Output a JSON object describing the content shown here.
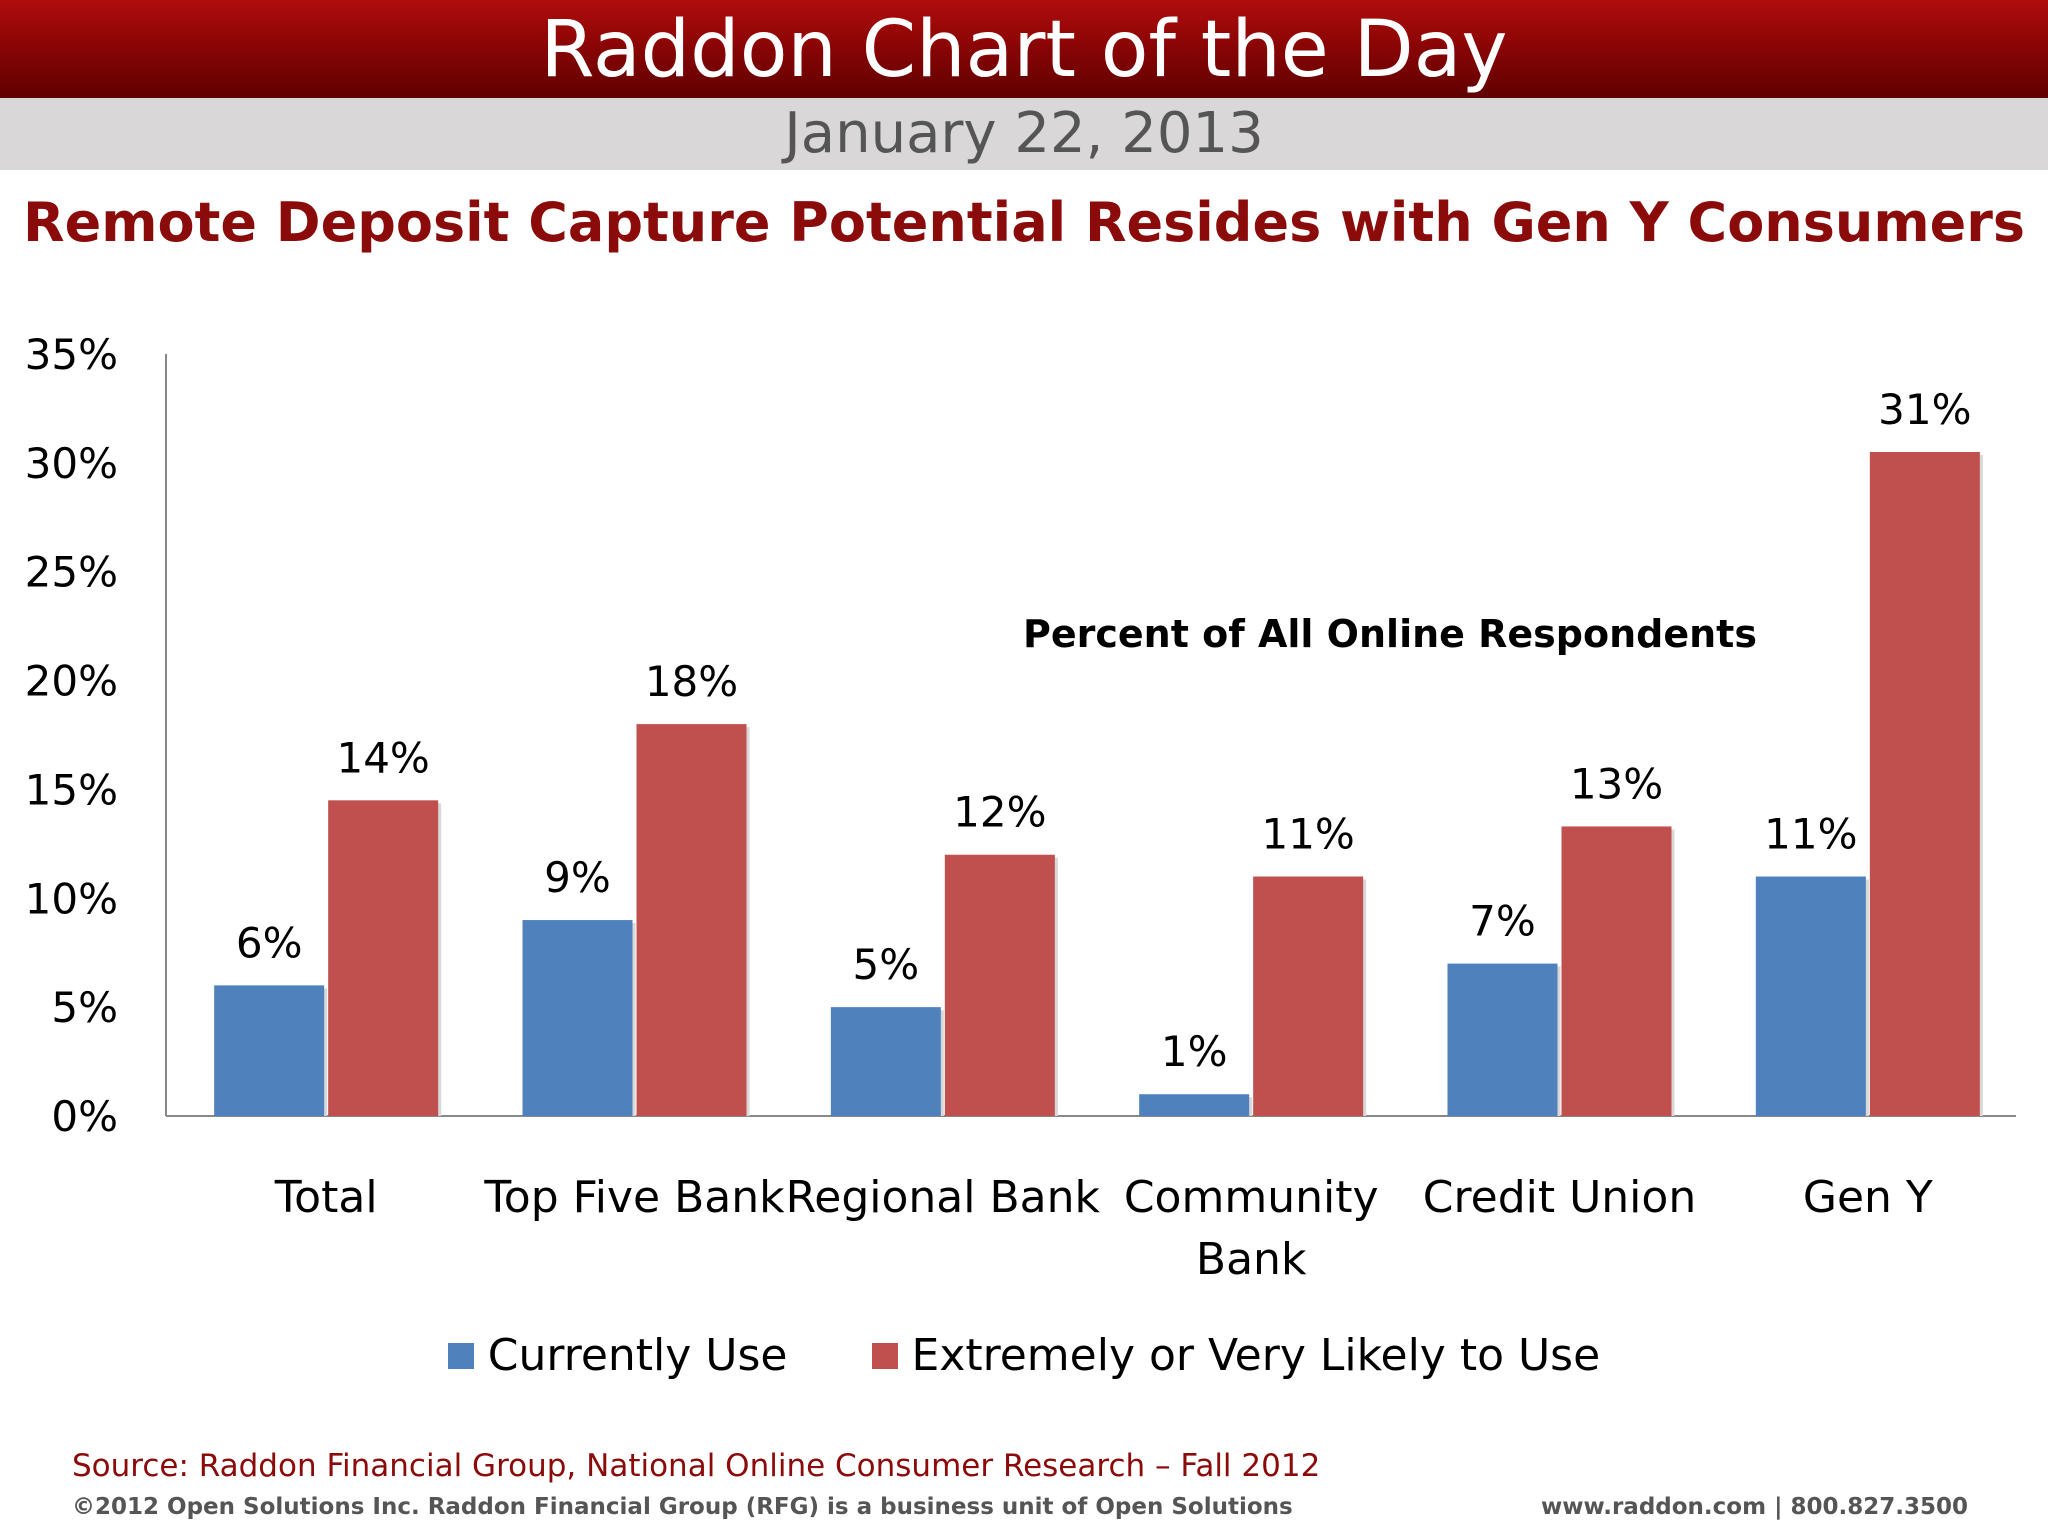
{
  "header": {
    "title": "Raddon Chart of the Day",
    "date": "January 22, 2013"
  },
  "headline": "Remote Deposit Capture Potential Resides with Gen Y Consumers",
  "chart_data": {
    "type": "bar",
    "annotation": "Percent of All Online Respondents",
    "categories": [
      [
        "Total"
      ],
      [
        "Top Five Bank"
      ],
      [
        "Regional Bank"
      ],
      [
        "Community",
        "Bank"
      ],
      [
        "Credit Union"
      ],
      [
        "Gen Y"
      ]
    ],
    "series": [
      {
        "name": "Currently Use",
        "color": "#4f81bd",
        "values": [
          6,
          9,
          5,
          1,
          7,
          11
        ],
        "labels": [
          "6%",
          "9%",
          "5%",
          "1%",
          "7%",
          "11%"
        ]
      },
      {
        "name": "Extremely or Very Likely to Use",
        "color": "#c0504d",
        "values": [
          14.5,
          18,
          12,
          11,
          13.3,
          30.5
        ],
        "labels": [
          "14%",
          "18%",
          "12%",
          "11%",
          "13%",
          "31%"
        ]
      }
    ],
    "ylim": [
      0,
      35
    ],
    "yticks": [
      0,
      5,
      10,
      15,
      20,
      25,
      30,
      35
    ],
    "ytick_labels": [
      "0%",
      "5%",
      "10%",
      "15%",
      "20%",
      "25%",
      "30%",
      "35%"
    ],
    "grid": false,
    "legend": "bottom-center"
  },
  "footer": {
    "source": "Source: Raddon Financial Group, National Online Consumer Research – Fall 2012",
    "copyright": "©2012 Open Solutions Inc.  Raddon Financial Group (RFG) is a business unit of Open Solutions",
    "contact": "www.raddon.com  |  800.827.3500"
  }
}
